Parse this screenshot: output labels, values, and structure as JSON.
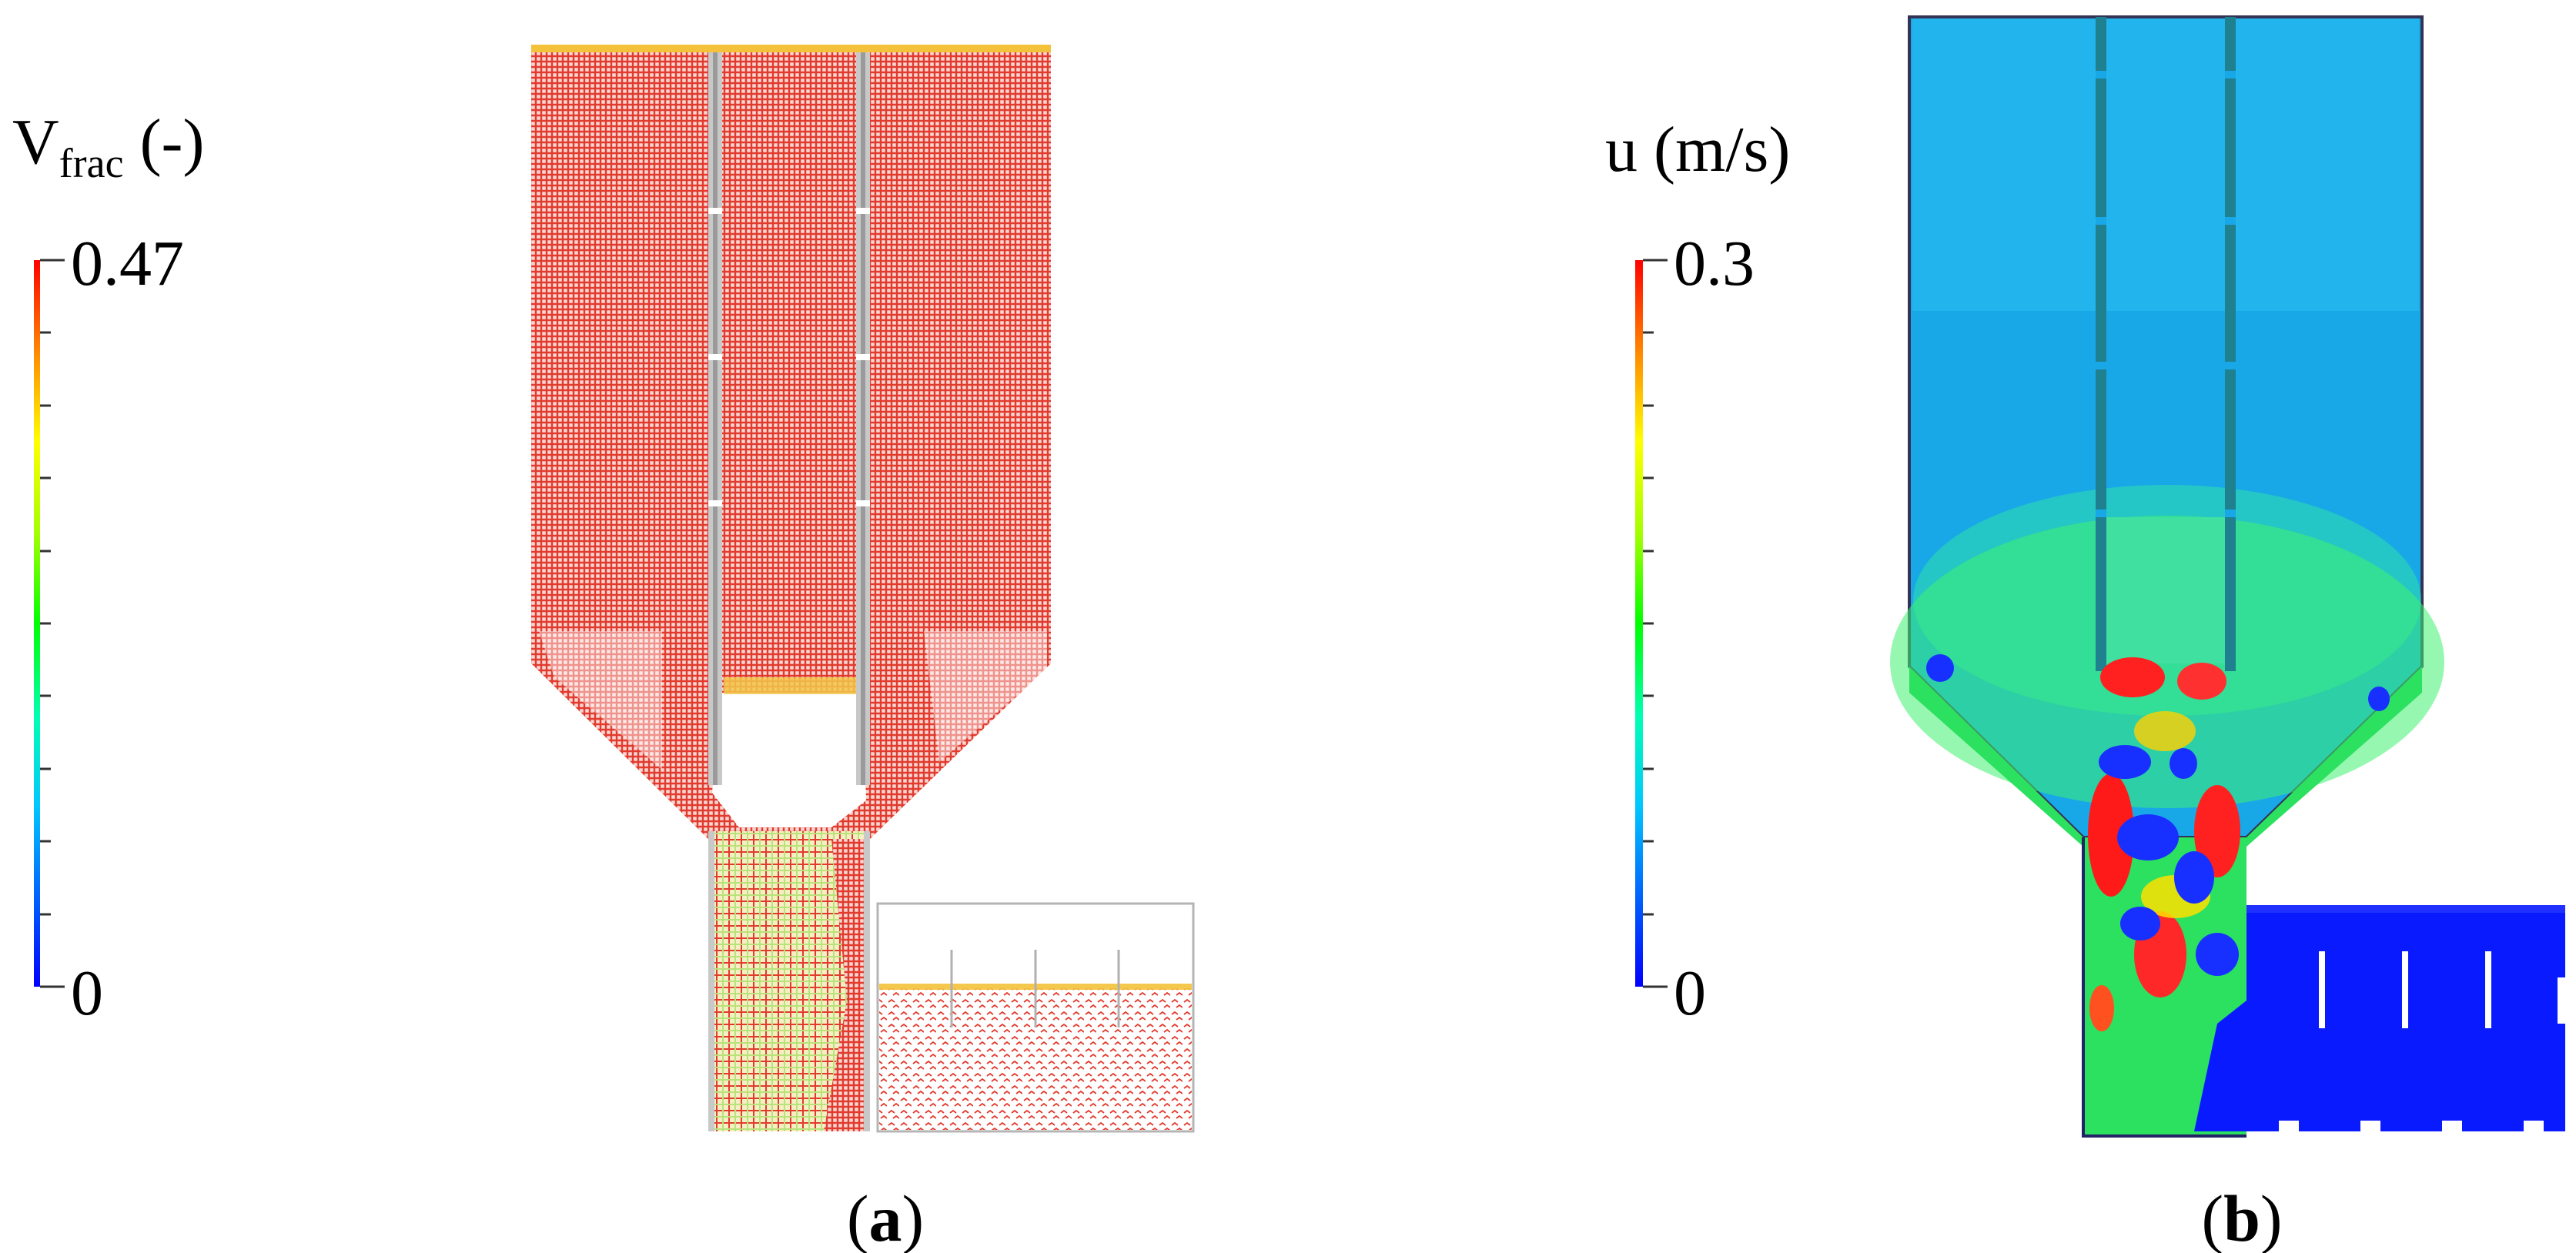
{
  "panel_a": {
    "legend": {
      "title_main": "V",
      "title_sub": "frac",
      "title_unit": " (-)",
      "max_label": "0.47",
      "min_label": "0"
    },
    "caption_open": "(",
    "caption_letter": "a",
    "caption_close": ")"
  },
  "panel_b": {
    "legend": {
      "title": "u (m/s)",
      "max_label": "0.3",
      "min_label": "0"
    },
    "caption_open": "(",
    "caption_letter": "b",
    "caption_close": ")"
  },
  "colors": {
    "scale_stops": [
      "#0000ff",
      "#0080ff",
      "#00ffff",
      "#00ff80",
      "#00ff00",
      "#80ff00",
      "#ffff00",
      "#ff8000",
      "#ff0000"
    ],
    "particle_red": "#e23b2e",
    "flow_background": "#1aaae6",
    "flow_low": "#0a1aff"
  }
}
